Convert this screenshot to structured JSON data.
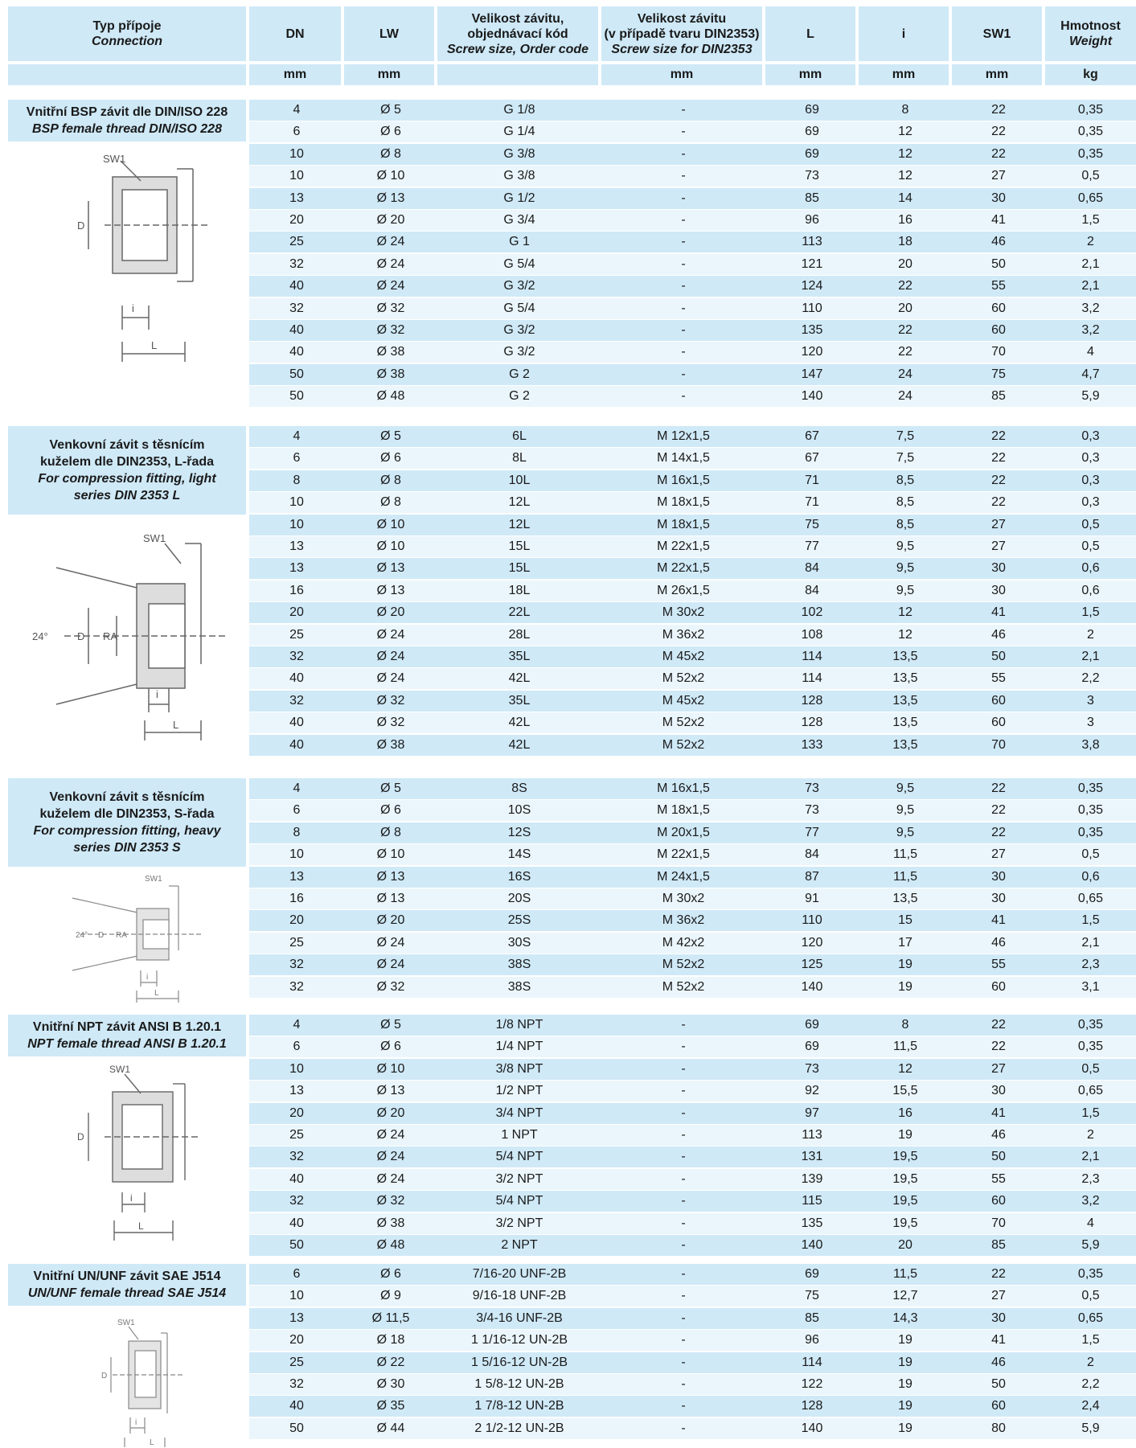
{
  "header": {
    "type": {
      "cz": "Typ přípoje",
      "en": "Connection"
    },
    "dn": "DN",
    "lw": "LW",
    "size": {
      "cz1": "Velikost závitu,",
      "cz2": "objednávací kód",
      "en": "Screw size, Order code"
    },
    "din": {
      "cz1": "Velikost závitu",
      "cz2": "(v případě tvaru DIN2353)",
      "en": "Screw size for DIN2353"
    },
    "l": "L",
    "i": "i",
    "sw1": "SW1",
    "weight": {
      "cz": "Hmotnost",
      "en": "Weight"
    }
  },
  "units": {
    "dn": "mm",
    "lw": "mm",
    "size": "",
    "din": "mm",
    "l": "mm",
    "i": "mm",
    "sw1": "mm",
    "weight": "kg"
  },
  "sections": [
    {
      "title_cz": "Vnitřní BSP závit dle DIN/ISO 228",
      "title_en": "BSP female thread DIN/ISO 228",
      "drawing_labels": {
        "sw": "SW1",
        "d": "D",
        "i": "i",
        "l": "L"
      },
      "rows": [
        [
          "4",
          "Ø 5",
          "G 1/8",
          "-",
          "69",
          "8",
          "22",
          "0,35"
        ],
        [
          "6",
          "Ø 6",
          "G 1/4",
          "-",
          "69",
          "12",
          "22",
          "0,35"
        ],
        [
          "10",
          "Ø 8",
          "G 3/8",
          "-",
          "69",
          "12",
          "22",
          "0,35"
        ],
        [
          "10",
          "Ø 10",
          "G 3/8",
          "-",
          "73",
          "12",
          "27",
          "0,5"
        ],
        [
          "13",
          "Ø 13",
          "G 1/2",
          "-",
          "85",
          "14",
          "30",
          "0,65"
        ],
        [
          "20",
          "Ø 20",
          "G 3/4",
          "-",
          "96",
          "16",
          "41",
          "1,5"
        ],
        [
          "25",
          "Ø 24",
          "G 1",
          "-",
          "113",
          "18",
          "46",
          "2"
        ],
        [
          "32",
          "Ø 24",
          "G 5/4",
          "-",
          "121",
          "20",
          "50",
          "2,1"
        ],
        [
          "40",
          "Ø 24",
          "G 3/2",
          "-",
          "124",
          "22",
          "55",
          "2,1"
        ],
        [
          "32",
          "Ø 32",
          "G 5/4",
          "-",
          "110",
          "20",
          "60",
          "3,2"
        ],
        [
          "40",
          "Ø 32",
          "G 3/2",
          "-",
          "135",
          "22",
          "60",
          "3,2"
        ],
        [
          "40",
          "Ø 38",
          "G 3/2",
          "-",
          "120",
          "22",
          "70",
          "4"
        ],
        [
          "50",
          "Ø 38",
          "G 2",
          "-",
          "147",
          "24",
          "75",
          "4,7"
        ],
        [
          "50",
          "Ø 48",
          "G 2",
          "-",
          "140",
          "24",
          "85",
          "5,9"
        ]
      ]
    },
    {
      "title_cz": "Venkovní závit s těsnícím kuželem dle DIN2353, L-řada",
      "title_en": "For compression fitting, light series DIN 2353 L",
      "drawing_labels": {
        "sw": "SW1",
        "d": "D",
        "ra": "RA",
        "angle": "24°",
        "i": "i",
        "l": "L"
      },
      "rows": [
        [
          "4",
          "Ø 5",
          "6L",
          "M 12x1,5",
          "67",
          "7,5",
          "22",
          "0,3"
        ],
        [
          "6",
          "Ø 6",
          "8L",
          "M 14x1,5",
          "67",
          "7,5",
          "22",
          "0,3"
        ],
        [
          "8",
          "Ø 8",
          "10L",
          "M 16x1,5",
          "71",
          "8,5",
          "22",
          "0,3"
        ],
        [
          "10",
          "Ø 8",
          "12L",
          "M 18x1,5",
          "71",
          "8,5",
          "22",
          "0,3"
        ],
        [
          "10",
          "Ø 10",
          "12L",
          "M 18x1,5",
          "75",
          "8,5",
          "27",
          "0,5"
        ],
        [
          "13",
          "Ø 10",
          "15L",
          "M 22x1,5",
          "77",
          "9,5",
          "27",
          "0,5"
        ],
        [
          "13",
          "Ø 13",
          "15L",
          "M 22x1,5",
          "84",
          "9,5",
          "30",
          "0,6"
        ],
        [
          "16",
          "Ø 13",
          "18L",
          "M 26x1,5",
          "84",
          "9,5",
          "30",
          "0,6"
        ],
        [
          "20",
          "Ø 20",
          "22L",
          "M 30x2",
          "102",
          "12",
          "41",
          "1,5"
        ],
        [
          "25",
          "Ø 24",
          "28L",
          "M 36x2",
          "108",
          "12",
          "46",
          "2"
        ],
        [
          "32",
          "Ø 24",
          "35L",
          "M 45x2",
          "114",
          "13,5",
          "50",
          "2,1"
        ],
        [
          "40",
          "Ø 24",
          "42L",
          "M 52x2",
          "114",
          "13,5",
          "55",
          "2,2"
        ],
        [
          "32",
          "Ø 32",
          "35L",
          "M 45x2",
          "128",
          "13,5",
          "60",
          "3"
        ],
        [
          "40",
          "Ø 32",
          "42L",
          "M 52x2",
          "128",
          "13,5",
          "60",
          "3"
        ],
        [
          "40",
          "Ø 38",
          "42L",
          "M 52x2",
          "133",
          "13,5",
          "70",
          "3,8"
        ]
      ]
    },
    {
      "title_cz": "Venkovní závit s těsnícím kuželem dle DIN2353, S-řada",
      "title_en": "For compression fitting, heavy series DIN 2353 S",
      "drawing_labels": {
        "sw": "SW1",
        "d": "D",
        "ra": "RA",
        "angle": "24°",
        "i": "i",
        "l": "L"
      },
      "rows": [
        [
          "4",
          "Ø 5",
          "8S",
          "M 16x1,5",
          "73",
          "9,5",
          "22",
          "0,35"
        ],
        [
          "6",
          "Ø 6",
          "10S",
          "M 18x1,5",
          "73",
          "9,5",
          "22",
          "0,35"
        ],
        [
          "8",
          "Ø 8",
          "12S",
          "M 20x1,5",
          "77",
          "9,5",
          "22",
          "0,35"
        ],
        [
          "10",
          "Ø 10",
          "14S",
          "M 22x1,5",
          "84",
          "11,5",
          "27",
          "0,5"
        ],
        [
          "13",
          "Ø 13",
          "16S",
          "M 24x1,5",
          "87",
          "11,5",
          "30",
          "0,6"
        ],
        [
          "16",
          "Ø 13",
          "20S",
          "M 30x2",
          "91",
          "13,5",
          "30",
          "0,65"
        ],
        [
          "20",
          "Ø 20",
          "25S",
          "M 36x2",
          "110",
          "15",
          "41",
          "1,5"
        ],
        [
          "25",
          "Ø 24",
          "30S",
          "M 42x2",
          "120",
          "17",
          "46",
          "2,1"
        ],
        [
          "32",
          "Ø 24",
          "38S",
          "M 52x2",
          "125",
          "19",
          "55",
          "2,3"
        ],
        [
          "32",
          "Ø 32",
          "38S",
          "M 52x2",
          "140",
          "19",
          "60",
          "3,1"
        ]
      ]
    },
    {
      "title_cz": "Vnitřní NPT závit ANSI B 1.20.1",
      "title_en": "NPT female thread ANSI B 1.20.1",
      "drawing_labels": {
        "sw": "SW1",
        "d": "D",
        "i": "i",
        "l": "L"
      },
      "rows": [
        [
          "4",
          "Ø 5",
          "1/8 NPT",
          "-",
          "69",
          "8",
          "22",
          "0,35"
        ],
        [
          "6",
          "Ø 6",
          "1/4 NPT",
          "-",
          "69",
          "11,5",
          "22",
          "0,35"
        ],
        [
          "10",
          "Ø 10",
          "3/8 NPT",
          "-",
          "73",
          "12",
          "27",
          "0,5"
        ],
        [
          "13",
          "Ø 13",
          "1/2 NPT",
          "-",
          "92",
          "15,5",
          "30",
          "0,65"
        ],
        [
          "20",
          "Ø 20",
          "3/4 NPT",
          "-",
          "97",
          "16",
          "41",
          "1,5"
        ],
        [
          "25",
          "Ø 24",
          "1 NPT",
          "-",
          "113",
          "19",
          "46",
          "2"
        ],
        [
          "32",
          "Ø 24",
          "5/4 NPT",
          "-",
          "131",
          "19,5",
          "50",
          "2,1"
        ],
        [
          "40",
          "Ø 24",
          "3/2 NPT",
          "-",
          "139",
          "19,5",
          "55",
          "2,3"
        ],
        [
          "32",
          "Ø 32",
          "5/4 NPT",
          "-",
          "115",
          "19,5",
          "60",
          "3,2"
        ],
        [
          "40",
          "Ø 38",
          "3/2 NPT",
          "-",
          "135",
          "19,5",
          "70",
          "4"
        ],
        [
          "50",
          "Ø 48",
          "2 NPT",
          "-",
          "140",
          "20",
          "85",
          "5,9"
        ]
      ]
    },
    {
      "title_cz": "Vnitřní UN/UNF závit SAE J514",
      "title_en": "UN/UNF female thread SAE J514",
      "drawing_labels": {
        "sw": "SW1",
        "d": "D",
        "i": "i",
        "l": "L"
      },
      "rows": [
        [
          "6",
          "Ø 6",
          "7/16-20 UNF-2B",
          "-",
          "69",
          "11,5",
          "22",
          "0,35"
        ],
        [
          "10",
          "Ø 9",
          "9/16-18 UNF-2B",
          "-",
          "75",
          "12,7",
          "27",
          "0,5"
        ],
        [
          "13",
          "Ø 11,5",
          "3/4-16 UNF-2B",
          "-",
          "85",
          "14,3",
          "30",
          "0,65"
        ],
        [
          "20",
          "Ø 18",
          "1 1/16-12 UN-2B",
          "-",
          "96",
          "19",
          "41",
          "1,5"
        ],
        [
          "25",
          "Ø 22",
          "1 5/16-12 UN-2B",
          "-",
          "114",
          "19",
          "46",
          "2"
        ],
        [
          "32",
          "Ø 30",
          "1 5/8-12 UN-2B",
          "-",
          "122",
          "19",
          "50",
          "2,2"
        ],
        [
          "40",
          "Ø 35",
          "1 7/8-12 UN-2B",
          "-",
          "128",
          "19",
          "60",
          "2,4"
        ],
        [
          "50",
          "Ø 44",
          "2 1/2-12 UN-2B",
          "-",
          "140",
          "19",
          "80",
          "5,9"
        ]
      ]
    }
  ]
}
